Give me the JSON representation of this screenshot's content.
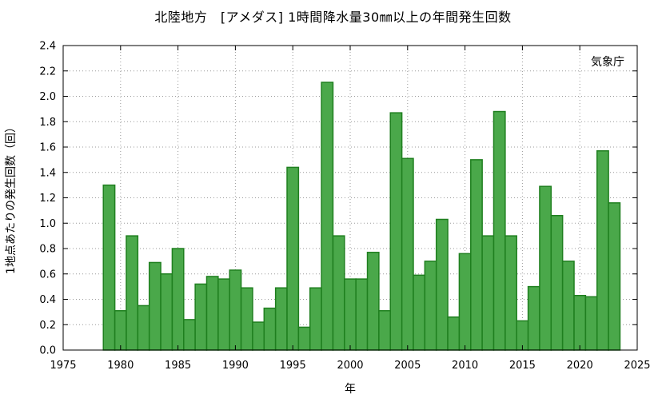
{
  "chart_data": {
    "type": "bar",
    "title": "北陸地方　[アメダス] 1時間降水量30㎜以上の年間発生回数",
    "xlabel": "年",
    "ylabel": "1地点あたりの発生回数（回）",
    "credit": "気象庁",
    "xlim": [
      1975,
      2025
    ],
    "ylim": [
      0,
      2.4
    ],
    "x_ticks": [
      1975,
      1980,
      1985,
      1990,
      1995,
      2000,
      2005,
      2010,
      2015,
      2020,
      2025
    ],
    "y_ticks": [
      0.0,
      0.2,
      0.4,
      0.6,
      0.8,
      1.0,
      1.2,
      1.4,
      1.6,
      1.8,
      2.0,
      2.2,
      2.4
    ],
    "grid": true,
    "bar_color": "#4aa84a",
    "bar_edge_color": "#1f7f1f",
    "years": [
      1979,
      1980,
      1981,
      1982,
      1983,
      1984,
      1985,
      1986,
      1987,
      1988,
      1989,
      1990,
      1991,
      1992,
      1993,
      1994,
      1995,
      1996,
      1997,
      1998,
      1999,
      2000,
      2001,
      2002,
      2003,
      2004,
      2005,
      2006,
      2007,
      2008,
      2009,
      2010,
      2011,
      2012,
      2013,
      2014,
      2015,
      2016,
      2017,
      2018,
      2019,
      2020,
      2021,
      2022,
      2023
    ],
    "values": [
      1.3,
      0.31,
      0.9,
      0.35,
      0.69,
      0.6,
      0.8,
      0.24,
      0.52,
      0.58,
      0.56,
      0.63,
      0.49,
      0.22,
      0.33,
      0.49,
      1.44,
      0.18,
      0.49,
      2.11,
      0.9,
      0.56,
      0.56,
      0.77,
      0.31,
      1.87,
      1.51,
      0.59,
      0.7,
      1.03,
      0.26,
      0.76,
      1.5,
      0.9,
      1.88,
      0.9,
      0.23,
      0.5,
      1.29,
      1.06,
      0.7,
      0.43,
      0.42,
      1.57,
      1.16
    ]
  }
}
